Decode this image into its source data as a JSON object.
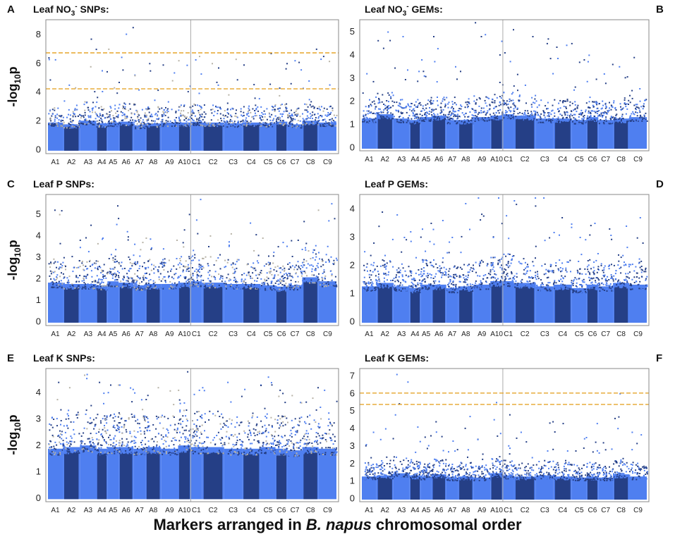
{
  "figure": {
    "xlabel_pre": "Markers arranged in ",
    "xlabel_species": "B. napus",
    "xlabel_post": " chromosomal order",
    "colors": {
      "light": "#4f7ff0",
      "dark": "#253f86",
      "threshold": "#e5a52b",
      "grey": "#b7b2a6",
      "divider": "#aaaaaa"
    }
  },
  "chart_data": [
    {
      "type": "scatter",
      "letter": "A",
      "title_pre": "Leaf NO",
      "title_sub": "3",
      "title_sup": "-",
      "title_post": " SNPs:",
      "ylabel_pre": "-log",
      "ylabel_sub": "10",
      "ylabel_post": "p",
      "ylim": [
        -0.3,
        9
      ],
      "yticks": [
        0,
        2,
        4,
        6,
        8
      ],
      "thresholds": [
        6.7,
        4.2
      ],
      "grey_points": true,
      "chromosomes": [
        "A1",
        "A2",
        "A3",
        "A4",
        "A5",
        "A6",
        "A7",
        "A8",
        "A9",
        "A10",
        "C1",
        "C2",
        "C3",
        "C4",
        "C5",
        "C6",
        "C7",
        "C8",
        "C9"
      ],
      "chromosome_peaks": [
        6.4,
        4.5,
        7.7,
        5.5,
        7.0,
        8.5,
        5.2,
        6.0,
        5.9,
        6.2,
        6.5,
        6.0,
        6.3,
        5.9,
        6.7,
        6.0,
        6.2,
        7.0,
        6.5
      ],
      "chromosome_baselines": [
        3.0,
        2.8,
        3.2,
        2.9,
        3.0,
        3.1,
        2.7,
        2.9,
        3.0,
        3.0,
        3.1,
        3.0,
        2.9,
        3.0,
        2.9,
        3.1,
        2.8,
        3.2,
        3.0
      ]
    },
    {
      "type": "scatter",
      "letter": "B",
      "title_pre": "Leaf NO",
      "title_sub": "3",
      "title_sup": "-",
      "title_post": " GEMs:",
      "ylabel_pre": "",
      "ylabel_sub": "",
      "ylabel_post": "",
      "ylim": [
        -0.15,
        5.5
      ],
      "yticks": [
        0,
        1,
        2,
        3,
        4,
        5
      ],
      "thresholds": [],
      "grey_points": false,
      "chromosomes": [
        "A1",
        "A2",
        "A3",
        "A4",
        "A5",
        "A6",
        "A7",
        "A8",
        "A9",
        "A10",
        "C1",
        "C2",
        "C3",
        "C4",
        "C5",
        "C6",
        "C7",
        "C8",
        "C9"
      ],
      "chromosome_peaks": [
        3.2,
        5.0,
        4.8,
        3.3,
        3.8,
        4.8,
        3.5,
        3.3,
        5.4,
        4.6,
        5.1,
        4.8,
        4.7,
        4.5,
        3.8,
        4.0,
        3.6,
        3.5,
        3.9
      ],
      "chromosome_baselines": [
        2.0,
        2.3,
        2.0,
        1.9,
        2.1,
        2.2,
        1.9,
        1.9,
        2.1,
        2.2,
        2.3,
        2.2,
        2.0,
        2.0,
        1.9,
        2.1,
        1.9,
        2.0,
        2.1
      ]
    },
    {
      "type": "scatter",
      "letter": "C",
      "title_pre": "Leaf P SNPs:",
      "title_sub": "",
      "title_sup": "",
      "title_post": "",
      "ylabel_pre": "-log",
      "ylabel_sub": "10",
      "ylabel_post": "p",
      "ylim": [
        -0.2,
        5.9
      ],
      "yticks": [
        0,
        1,
        2,
        3,
        4,
        5
      ],
      "thresholds": [],
      "grey_points": true,
      "chromosomes": [
        "A1",
        "A2",
        "A3",
        "A4",
        "A5",
        "A6",
        "A7",
        "A8",
        "A9",
        "A10",
        "C1",
        "C2",
        "C3",
        "C4",
        "C5",
        "C6",
        "C7",
        "C8",
        "C9"
      ],
      "chromosome_peaks": [
        5.2,
        3.8,
        4.5,
        3.9,
        5.4,
        4.2,
        3.7,
        3.9,
        3.8,
        5.0,
        5.7,
        4.0,
        4.1,
        4.6,
        3.9,
        3.7,
        3.8,
        5.2,
        5.5
      ],
      "chromosome_baselines": [
        2.9,
        2.8,
        2.8,
        2.7,
        3.0,
        2.9,
        2.7,
        2.8,
        2.8,
        2.9,
        3.0,
        2.9,
        2.8,
        2.8,
        2.7,
        2.6,
        2.7,
        3.3,
        3.0
      ]
    },
    {
      "type": "scatter",
      "letter": "D",
      "title_pre": "Leaf P GEMs:",
      "title_sub": "",
      "title_sup": "",
      "title_post": "",
      "ylabel_pre": "",
      "ylabel_sub": "",
      "ylabel_post": "",
      "ylim": [
        -0.15,
        4.5
      ],
      "yticks": [
        0,
        1,
        2,
        3,
        4
      ],
      "thresholds": [],
      "grey_points": false,
      "chromosomes": [
        "A1",
        "A2",
        "A3",
        "A4",
        "A5",
        "A6",
        "A7",
        "A8",
        "A9",
        "A10",
        "C1",
        "C2",
        "C3",
        "C4",
        "C5",
        "C6",
        "C7",
        "C8",
        "C9"
      ],
      "chromosome_peaks": [
        2.8,
        3.9,
        3.8,
        3.2,
        3.5,
        3.6,
        3.0,
        4.2,
        4.4,
        4.4,
        4.3,
        4.4,
        4.4,
        3.7,
        3.0,
        3.5,
        3.3,
        3.4,
        3.7
      ],
      "chromosome_baselines": [
        2.0,
        2.2,
        2.0,
        1.9,
        2.1,
        2.1,
        1.9,
        2.0,
        2.1,
        2.3,
        2.3,
        2.2,
        2.0,
        2.1,
        1.9,
        2.1,
        2.0,
        2.2,
        2.1
      ]
    },
    {
      "type": "scatter",
      "letter": "E",
      "title_pre": "Leaf K SNPs:",
      "title_sub": "",
      "title_sup": "",
      "title_post": "",
      "ylabel_pre": "-log",
      "ylabel_sub": "10",
      "ylabel_post": "p",
      "ylim": [
        -0.15,
        4.9
      ],
      "yticks": [
        0,
        1,
        2,
        3,
        4
      ],
      "thresholds": [],
      "grey_points": true,
      "chromosomes": [
        "A1",
        "A2",
        "A3",
        "A4",
        "A5",
        "A6",
        "A7",
        "A8",
        "A9",
        "A10",
        "C1",
        "C2",
        "C3",
        "C4",
        "C5",
        "C6",
        "C7",
        "C8",
        "C9"
      ],
      "chromosome_peaks": [
        4.4,
        4.2,
        4.7,
        4.4,
        4.3,
        4.3,
        4.0,
        4.2,
        4.1,
        4.8,
        4.1,
        4.2,
        4.4,
        4.3,
        4.6,
        4.1,
        3.9,
        4.2,
        4.1
      ],
      "chromosome_baselines": [
        3.0,
        3.1,
        3.2,
        3.0,
        3.1,
        3.1,
        3.0,
        3.1,
        3.0,
        3.2,
        3.1,
        3.1,
        3.0,
        3.0,
        3.1,
        3.0,
        2.9,
        3.1,
        3.0
      ]
    },
    {
      "type": "scatter",
      "letter": "F",
      "title_pre": "Leaf K GEMs:",
      "title_sub": "",
      "title_sup": "",
      "title_post": "",
      "ylabel_pre": "",
      "ylabel_sub": "",
      "ylabel_post": "",
      "ylim": [
        -0.2,
        7.4
      ],
      "yticks": [
        0,
        1,
        2,
        3,
        4,
        5,
        6,
        7
      ],
      "thresholds": [
        6.0,
        5.35
      ],
      "grey_points": false,
      "chromosomes": [
        "A1",
        "A2",
        "A3",
        "A4",
        "A5",
        "A6",
        "A7",
        "A8",
        "A9",
        "A10",
        "C1",
        "C2",
        "C3",
        "C4",
        "C5",
        "C6",
        "C7",
        "C8",
        "C9"
      ],
      "chromosome_peaks": [
        3.8,
        4.0,
        7.1,
        4.1,
        3.6,
        4.4,
        3.3,
        4.7,
        3.4,
        5.5,
        4.8,
        3.8,
        4.4,
        4.3,
        3.5,
        4.3,
        3.2,
        6.0,
        3.8
      ],
      "chromosome_baselines": [
        2.0,
        2.1,
        2.3,
        2.1,
        2.0,
        2.2,
        1.9,
        2.0,
        1.9,
        2.3,
        2.1,
        2.0,
        2.1,
        2.0,
        1.9,
        2.0,
        1.9,
        2.2,
        2.0
      ]
    }
  ]
}
